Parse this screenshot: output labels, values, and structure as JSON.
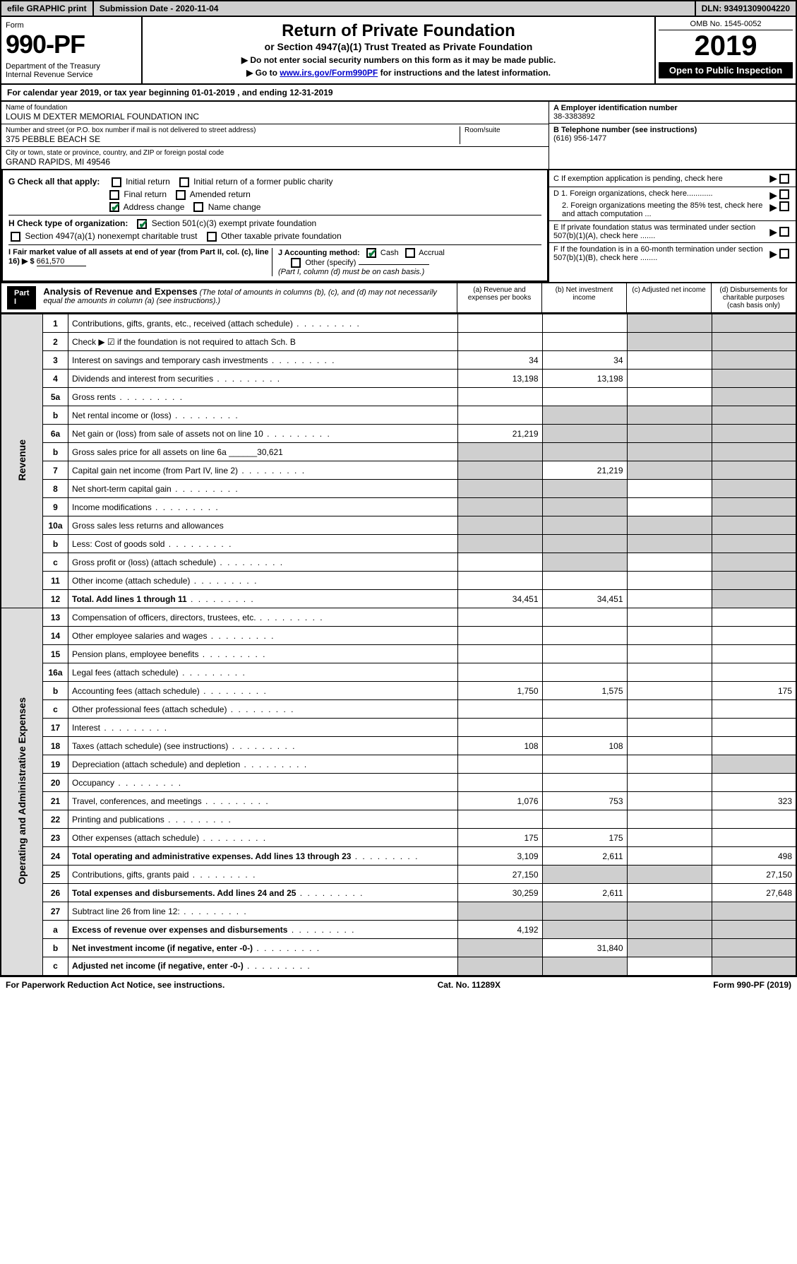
{
  "topbar": {
    "efile": "efile GRAPHIC print",
    "submission": "Submission Date - 2020-11-04",
    "dln": "DLN: 93491309004220"
  },
  "header": {
    "form_label": "Form",
    "form_num": "990-PF",
    "dept": "Department of the Treasury\nInternal Revenue Service",
    "title": "Return of Private Foundation",
    "subtitle": "or Section 4947(a)(1) Trust Treated as Private Foundation",
    "instr1": "▶ Do not enter social security numbers on this form as it may be made public.",
    "instr2_pre": "▶ Go to ",
    "instr2_link": "www.irs.gov/Form990PF",
    "instr2_post": " for instructions and the latest information.",
    "omb": "OMB No. 1545-0052",
    "year": "2019",
    "open": "Open to Public Inspection"
  },
  "calyear": "For calendar year 2019, or tax year beginning 01-01-2019                       , and ending 12-31-2019",
  "entity": {
    "name_label": "Name of foundation",
    "name": "LOUIS M DEXTER MEMORIAL FOUNDATION INC",
    "addr_label": "Number and street (or P.O. box number if mail is not delivered to street address)",
    "addr": "375 PEBBLE BEACH SE",
    "room_label": "Room/suite",
    "city_label": "City or town, state or province, country, and ZIP or foreign postal code",
    "city": "GRAND RAPIDS, MI  49546",
    "ein_label": "A Employer identification number",
    "ein": "38-3383892",
    "phone_label": "B Telephone number (see instructions)",
    "phone": "(616) 956-1477",
    "c_label": "C If exemption application is pending, check here",
    "d1": "D 1. Foreign organizations, check here............",
    "d2": "2. Foreign organizations meeting the 85% test, check here and attach computation ...",
    "e_label": "E If private foundation status was terminated under section 507(b)(1)(A), check here .......",
    "f_label": "F If the foundation is in a 60-month termination under section 507(b)(1)(B), check here ........"
  },
  "checks": {
    "g_label": "G Check all that apply:",
    "initial": "Initial return",
    "initial_former": "Initial return of a former public charity",
    "final": "Final return",
    "amended": "Amended return",
    "address": "Address change",
    "name_change": "Name change",
    "h_label": "H Check type of organization:",
    "h1": "Section 501(c)(3) exempt private foundation",
    "h2": "Section 4947(a)(1) nonexempt charitable trust",
    "h3": "Other taxable private foundation",
    "i_label": "I Fair market value of all assets at end of year (from Part II, col. (c), line 16) ▶ $",
    "i_val": "661,570",
    "j_label": "J Accounting method:",
    "j_cash": "Cash",
    "j_accrual": "Accrual",
    "j_other": "Other (specify)",
    "j_note": "(Part I, column (d) must be on cash basis.)"
  },
  "part1": {
    "label": "Part I",
    "title": "Analysis of Revenue and Expenses",
    "note": "(The total of amounts in columns (b), (c), and (d) may not necessarily equal the amounts in column (a) (see instructions).)",
    "col_a": "(a)  Revenue and expenses per books",
    "col_b": "(b)  Net investment income",
    "col_c": "(c)  Adjusted net income",
    "col_d": "(d)  Disbursements for charitable purposes (cash basis only)"
  },
  "rotlabels": {
    "rev": "Revenue",
    "exp": "Operating and Administrative Expenses"
  },
  "rows": [
    {
      "n": "1",
      "d": "Contributions, gifts, grants, etc., received (attach schedule)",
      "a": "",
      "b": "",
      "c": "s",
      "dd": "s"
    },
    {
      "n": "2",
      "d": "Check ▶ ☑ if the foundation is not required to attach Sch. B",
      "a": "",
      "b": "",
      "c": "s",
      "dd": "s",
      "dotsOff": true
    },
    {
      "n": "3",
      "d": "Interest on savings and temporary cash investments",
      "a": "34",
      "b": "34",
      "c": "",
      "dd": "s"
    },
    {
      "n": "4",
      "d": "Dividends and interest from securities",
      "a": "13,198",
      "b": "13,198",
      "c": "",
      "dd": "s"
    },
    {
      "n": "5a",
      "d": "Gross rents",
      "a": "",
      "b": "",
      "c": "",
      "dd": "s"
    },
    {
      "n": "b",
      "d": "Net rental income or (loss)",
      "a": "",
      "b": "s",
      "c": "s",
      "dd": "s"
    },
    {
      "n": "6a",
      "d": "Net gain or (loss) from sale of assets not on line 10",
      "a": "21,219",
      "b": "s",
      "c": "s",
      "dd": "s"
    },
    {
      "n": "b",
      "d": "Gross sales price for all assets on line 6a ______30,621",
      "a": "s",
      "b": "s",
      "c": "s",
      "dd": "s",
      "dotsOff": true
    },
    {
      "n": "7",
      "d": "Capital gain net income (from Part IV, line 2)",
      "a": "s",
      "b": "21,219",
      "c": "s",
      "dd": "s"
    },
    {
      "n": "8",
      "d": "Net short-term capital gain",
      "a": "s",
      "b": "s",
      "c": "",
      "dd": "s"
    },
    {
      "n": "9",
      "d": "Income modifications",
      "a": "s",
      "b": "s",
      "c": "",
      "dd": "s"
    },
    {
      "n": "10a",
      "d": "Gross sales less returns and allowances",
      "a": "s",
      "b": "s",
      "c": "s",
      "dd": "s",
      "dotsOff": true
    },
    {
      "n": "b",
      "d": "Less: Cost of goods sold",
      "a": "s",
      "b": "s",
      "c": "s",
      "dd": "s"
    },
    {
      "n": "c",
      "d": "Gross profit or (loss) (attach schedule)",
      "a": "",
      "b": "s",
      "c": "",
      "dd": "s"
    },
    {
      "n": "11",
      "d": "Other income (attach schedule)",
      "a": "",
      "b": "",
      "c": "",
      "dd": "s"
    },
    {
      "n": "12",
      "d": "Total. Add lines 1 through 11",
      "a": "34,451",
      "b": "34,451",
      "c": "",
      "dd": "s",
      "bold": true
    },
    {
      "n": "13",
      "d": "Compensation of officers, directors, trustees, etc.",
      "a": "",
      "b": "",
      "c": "",
      "dd": ""
    },
    {
      "n": "14",
      "d": "Other employee salaries and wages",
      "a": "",
      "b": "",
      "c": "",
      "dd": ""
    },
    {
      "n": "15",
      "d": "Pension plans, employee benefits",
      "a": "",
      "b": "",
      "c": "",
      "dd": ""
    },
    {
      "n": "16a",
      "d": "Legal fees (attach schedule)",
      "a": "",
      "b": "",
      "c": "",
      "dd": ""
    },
    {
      "n": "b",
      "d": "Accounting fees (attach schedule)",
      "a": "1,750",
      "b": "1,575",
      "c": "",
      "dd": "175"
    },
    {
      "n": "c",
      "d": "Other professional fees (attach schedule)",
      "a": "",
      "b": "",
      "c": "",
      "dd": ""
    },
    {
      "n": "17",
      "d": "Interest",
      "a": "",
      "b": "",
      "c": "",
      "dd": ""
    },
    {
      "n": "18",
      "d": "Taxes (attach schedule) (see instructions)",
      "a": "108",
      "b": "108",
      "c": "",
      "dd": ""
    },
    {
      "n": "19",
      "d": "Depreciation (attach schedule) and depletion",
      "a": "",
      "b": "",
      "c": "",
      "dd": "s"
    },
    {
      "n": "20",
      "d": "Occupancy",
      "a": "",
      "b": "",
      "c": "",
      "dd": ""
    },
    {
      "n": "21",
      "d": "Travel, conferences, and meetings",
      "a": "1,076",
      "b": "753",
      "c": "",
      "dd": "323"
    },
    {
      "n": "22",
      "d": "Printing and publications",
      "a": "",
      "b": "",
      "c": "",
      "dd": ""
    },
    {
      "n": "23",
      "d": "Other expenses (attach schedule)",
      "a": "175",
      "b": "175",
      "c": "",
      "dd": ""
    },
    {
      "n": "24",
      "d": "Total operating and administrative expenses. Add lines 13 through 23",
      "a": "3,109",
      "b": "2,611",
      "c": "",
      "dd": "498",
      "bold": true
    },
    {
      "n": "25",
      "d": "Contributions, gifts, grants paid",
      "a": "27,150",
      "b": "s",
      "c": "s",
      "dd": "27,150"
    },
    {
      "n": "26",
      "d": "Total expenses and disbursements. Add lines 24 and 25",
      "a": "30,259",
      "b": "2,611",
      "c": "",
      "dd": "27,648",
      "bold": true
    },
    {
      "n": "27",
      "d": "Subtract line 26 from line 12:",
      "a": "s",
      "b": "s",
      "c": "s",
      "dd": "s"
    },
    {
      "n": "a",
      "d": "Excess of revenue over expenses and disbursements",
      "a": "4,192",
      "b": "s",
      "c": "s",
      "dd": "s",
      "bold": true
    },
    {
      "n": "b",
      "d": "Net investment income (if negative, enter -0-)",
      "a": "s",
      "b": "31,840",
      "c": "s",
      "dd": "s",
      "bold": true
    },
    {
      "n": "c",
      "d": "Adjusted net income (if negative, enter -0-)",
      "a": "s",
      "b": "s",
      "c": "",
      "dd": "s",
      "bold": true
    }
  ],
  "footer": {
    "left": "For Paperwork Reduction Act Notice, see instructions.",
    "mid": "Cat. No. 11289X",
    "right": "Form 990-PF (2019)"
  }
}
